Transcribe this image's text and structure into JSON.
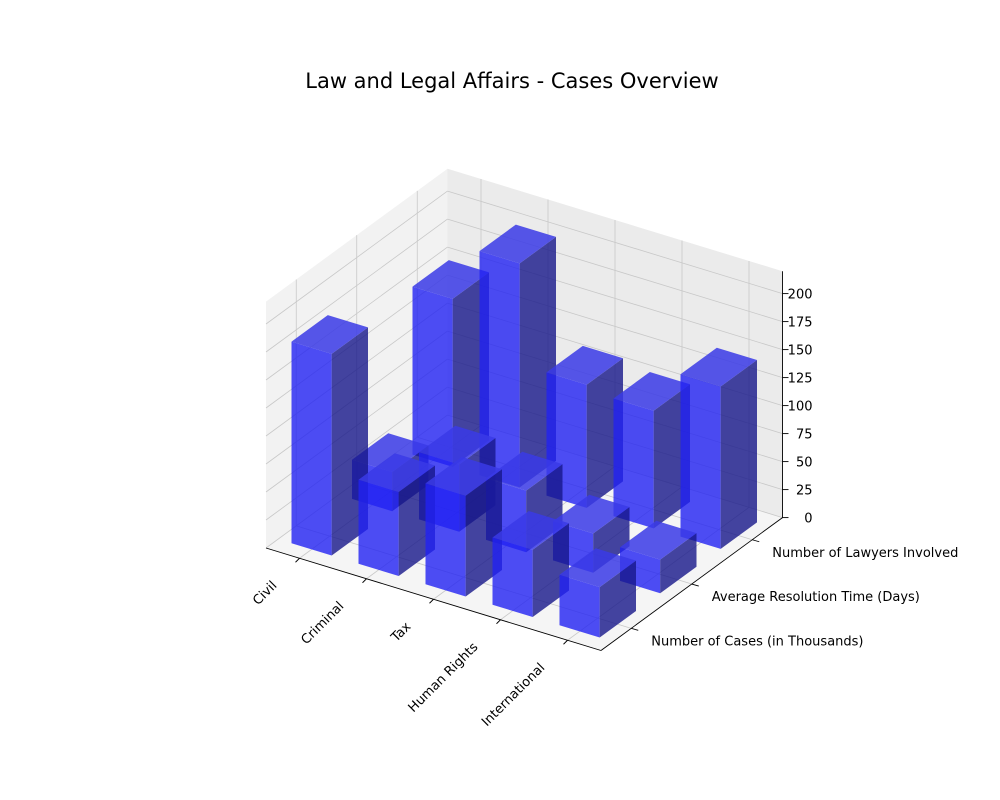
{
  "chart_data": {
    "type": "bar3d",
    "title": "Law and Legal Affairs - Cases Overview",
    "categories": [
      "Civil",
      "Criminal",
      "Tax",
      "Human Rights",
      "International"
    ],
    "series": [
      {
        "name": "Number of Cases (in Thousands)",
        "values": [
          180,
          75,
          90,
          60,
          45
        ]
      },
      {
        "name": "Average Resolution Time (Days)",
        "values": [
          35,
          60,
          55,
          35,
          30
        ]
      },
      {
        "name": "Number of Lawyers Involved",
        "values": [
          150,
          200,
          110,
          105,
          145
        ]
      }
    ],
    "zlim": [
      0,
      220
    ],
    "zticks": [
      0,
      25,
      50,
      75,
      100,
      125,
      150,
      175,
      200
    ],
    "bar_color": "#0000ff",
    "grid": true
  }
}
